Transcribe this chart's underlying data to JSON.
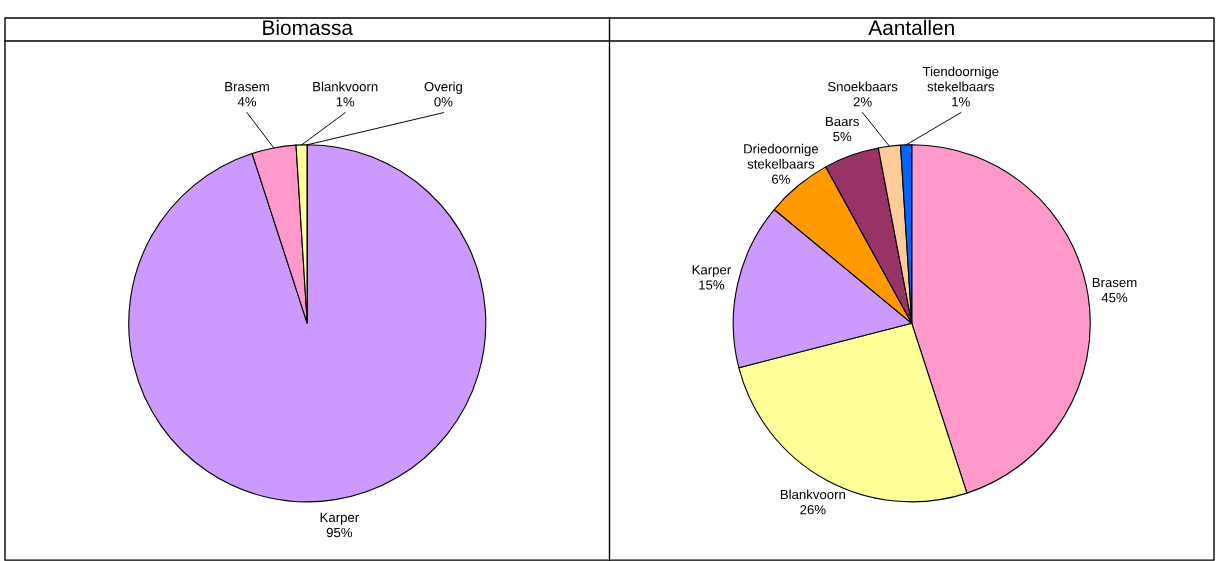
{
  "chart_data": [
    {
      "type": "pie",
      "title": "Biomassa",
      "categories": [
        "Karper",
        "Brasem",
        "Blankvoorn",
        "Overig"
      ],
      "values": [
        95,
        4,
        1,
        0
      ],
      "value_labels": [
        "95%",
        "4%",
        "1%",
        "0%"
      ],
      "colors": [
        "#cc99ff",
        "#ff99cc",
        "#ffff99",
        "#993366"
      ],
      "legend": false
    },
    {
      "type": "pie",
      "title": "Aantallen",
      "categories": [
        "Brasem",
        "Blankvoorn",
        "Karper",
        "Driedoornige stekelbaars",
        "Baars",
        "Snoekbaars",
        "Tiendoornige stekelbaars"
      ],
      "values": [
        45,
        26,
        15,
        6,
        5,
        2,
        1
      ],
      "value_labels": [
        "45%",
        "26%",
        "15%",
        "6%",
        "5%",
        "2%",
        "1%"
      ],
      "colors": [
        "#ff99cc",
        "#ffff99",
        "#cc99ff",
        "#ff9900",
        "#993366",
        "#ffcc99",
        "#0066ff"
      ],
      "legend": false
    }
  ]
}
